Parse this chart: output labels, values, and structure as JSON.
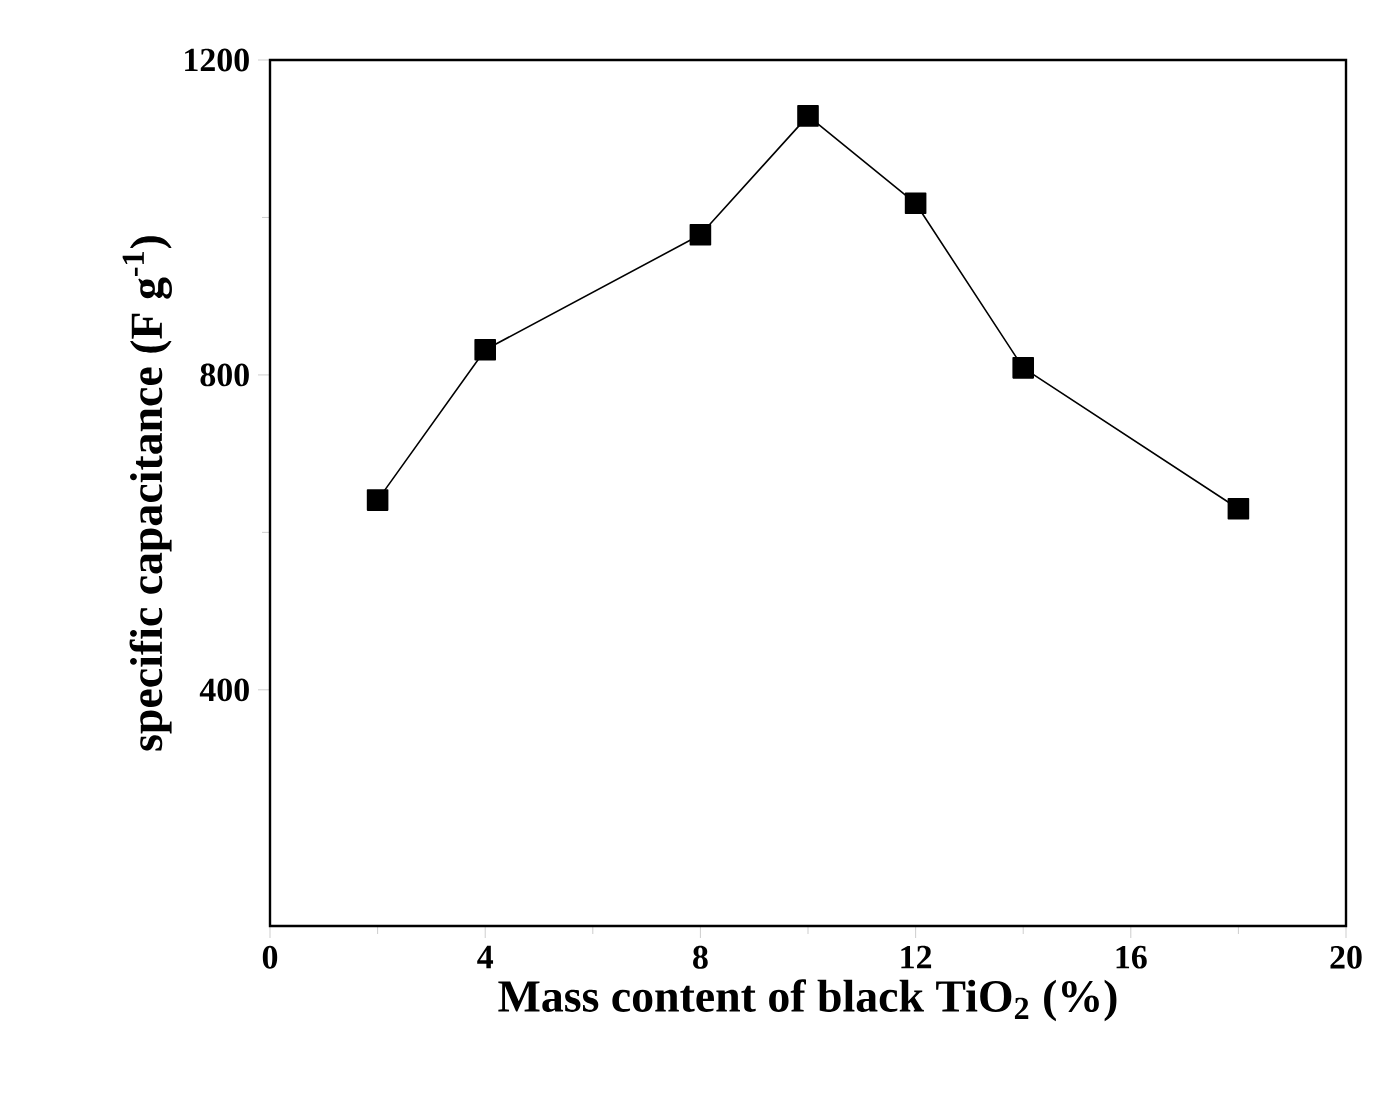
{
  "chart_data": {
    "type": "line",
    "xlabel": "Mass content of black TiO$_{2}$ (%)",
    "ylabel": "specific capacitance (F g$^{-1}$)",
    "x": [
      2,
      4,
      8,
      10,
      12,
      14,
      18
    ],
    "series": [
      {
        "color": "#000000",
        "values": [
          641,
          832,
          978,
          1129,
          1018,
          809,
          630
        ]
      }
    ],
    "xlim": [
      0,
      20
    ],
    "xticks": [
      0,
      4,
      8,
      12,
      16,
      20
    ],
    "ylim": [
      100,
      1200
    ],
    "yticks": [
      400,
      800,
      1200
    ],
    "marker": "square",
    "line_style": "solid"
  }
}
